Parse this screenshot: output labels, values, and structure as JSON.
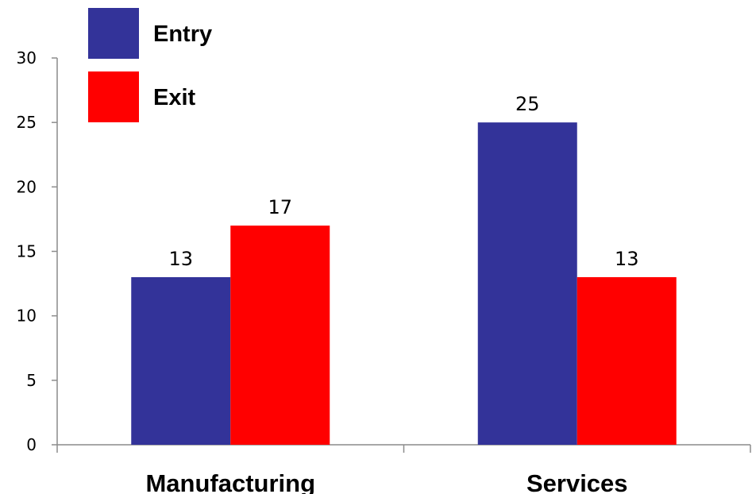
{
  "chart_data": {
    "type": "bar",
    "categories": [
      "Manufacturing",
      "Services"
    ],
    "series": [
      {
        "name": "Entry",
        "values": [
          13,
          25
        ],
        "color": "#333399"
      },
      {
        "name": "Exit",
        "values": [
          17,
          13
        ],
        "color": "#ff0000"
      }
    ],
    "ylim": [
      0,
      30
    ],
    "yticks": [
      0,
      5,
      10,
      15,
      20,
      25,
      30
    ],
    "grid": false,
    "legend_position": "top-left",
    "data_labels": true
  }
}
